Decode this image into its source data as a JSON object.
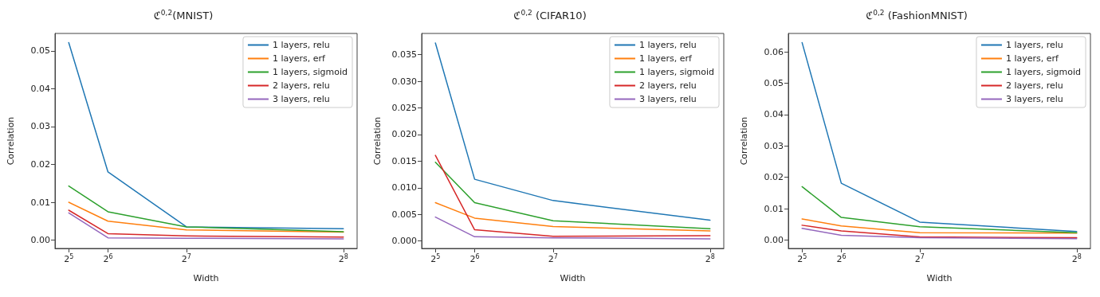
{
  "chart_data": [
    {
      "type": "line",
      "title": "ℭ$^{0,2}$(MNIST)",
      "xlabel": "Width",
      "ylabel": "Correlation",
      "x": [
        32,
        64,
        128,
        256
      ],
      "xlim": [
        20.8,
        267.2
      ],
      "xticks": [
        {
          "value": 32,
          "label": "2$^{5}$"
        },
        {
          "value": 64,
          "label": "2$^{6}$"
        },
        {
          "value": 128,
          "label": "2$^{7}$"
        },
        {
          "value": 256,
          "label": "2$^{8}$"
        }
      ],
      "ylim": [
        -0.0022,
        0.0546
      ],
      "yticks": [
        {
          "value": 0,
          "label": "0.00"
        },
        {
          "value": 0.01,
          "label": "0.01"
        },
        {
          "value": 0.02,
          "label": "0.02"
        },
        {
          "value": 0.03,
          "label": "0.03"
        },
        {
          "value": 0.04,
          "label": "0.04"
        },
        {
          "value": 0.05,
          "label": "0.05"
        }
      ],
      "legend": "top right",
      "grid": false,
      "marker": "none",
      "line_style": "solid",
      "series": [
        {
          "name": "1 layers, relu",
          "color": "#1f77b4",
          "values": [
            0.0522,
            0.018,
            0.0035,
            0.003
          ]
        },
        {
          "name": "1 layers, erf",
          "color": "#ff7f0e",
          "values": [
            0.01,
            0.005,
            0.0027,
            0.0021
          ]
        },
        {
          "name": "1 layers, sigmoid",
          "color": "#2ca02c",
          "values": [
            0.0143,
            0.0075,
            0.0035,
            0.0022
          ]
        },
        {
          "name": "2 layers, relu",
          "color": "#d62728",
          "values": [
            0.0079,
            0.0017,
            0.0011,
            0.0008
          ]
        },
        {
          "name": "3 layers, relu",
          "color": "#9467bd",
          "values": [
            0.0072,
            0.0006,
            0.0005,
            0.0003
          ]
        }
      ]
    },
    {
      "type": "line",
      "title": "ℭ$^{0,2}$ (CIFAR10)",
      "xlabel": "Width",
      "ylabel": "Correlation",
      "x": [
        32,
        64,
        128,
        256
      ],
      "xlim": [
        20.8,
        267.2
      ],
      "xticks": [
        {
          "value": 32,
          "label": "2$^{5}$"
        },
        {
          "value": 64,
          "label": "2$^{6}$"
        },
        {
          "value": 128,
          "label": "2$^{7}$"
        },
        {
          "value": 256,
          "label": "2$^{8}$"
        }
      ],
      "ylim": [
        -0.0014,
        0.039
      ],
      "yticks": [
        {
          "value": 0,
          "label": "0.000"
        },
        {
          "value": 0.005,
          "label": "0.005"
        },
        {
          "value": 0.01,
          "label": "0.010"
        },
        {
          "value": 0.015,
          "label": "0.015"
        },
        {
          "value": 0.02,
          "label": "0.020"
        },
        {
          "value": 0.025,
          "label": "0.025"
        },
        {
          "value": 0.03,
          "label": "0.030"
        },
        {
          "value": 0.035,
          "label": "0.035"
        }
      ],
      "legend": "top right",
      "grid": false,
      "marker": "none",
      "line_style": "solid",
      "series": [
        {
          "name": "1 layers, relu",
          "color": "#1f77b4",
          "values": [
            0.0372,
            0.0116,
            0.0076,
            0.0039
          ]
        },
        {
          "name": "1 layers, erf",
          "color": "#ff7f0e",
          "values": [
            0.0072,
            0.0043,
            0.0027,
            0.0019
          ]
        },
        {
          "name": "1 layers, sigmoid",
          "color": "#2ca02c",
          "values": [
            0.0148,
            0.0072,
            0.0038,
            0.0023
          ]
        },
        {
          "name": "2 layers, relu",
          "color": "#d62728",
          "values": [
            0.0161,
            0.0021,
            0.0009,
            0.001
          ]
        },
        {
          "name": "3 layers, relu",
          "color": "#9467bd",
          "values": [
            0.0045,
            0.0008,
            0.0006,
            0.0004
          ]
        }
      ]
    },
    {
      "type": "line",
      "title": "ℭ$^{0,2}$ (FashionMNIST)",
      "xlabel": "Width",
      "ylabel": "Correlation",
      "x": [
        32,
        64,
        128,
        256
      ],
      "xlim": [
        20.8,
        267.2
      ],
      "xticks": [
        {
          "value": 32,
          "label": "2$^{5}$"
        },
        {
          "value": 64,
          "label": "2$^{6}$"
        },
        {
          "value": 128,
          "label": "2$^{7}$"
        },
        {
          "value": 256,
          "label": "2$^{8}$"
        }
      ],
      "ylim": [
        -0.0027,
        0.0659
      ],
      "yticks": [
        {
          "value": 0,
          "label": "0.00"
        },
        {
          "value": 0.01,
          "label": "0.01"
        },
        {
          "value": 0.02,
          "label": "0.02"
        },
        {
          "value": 0.03,
          "label": "0.03"
        },
        {
          "value": 0.04,
          "label": "0.04"
        },
        {
          "value": 0.05,
          "label": "0.05"
        },
        {
          "value": 0.06,
          "label": "0.06"
        }
      ],
      "legend": "top right",
      "grid": false,
      "marker": "none",
      "line_style": "solid",
      "series": [
        {
          "name": "1 layers, relu",
          "color": "#1f77b4",
          "values": [
            0.063,
            0.0181,
            0.0057,
            0.0027
          ]
        },
        {
          "name": "1 layers, erf",
          "color": "#ff7f0e",
          "values": [
            0.0067,
            0.0045,
            0.0023,
            0.0022
          ]
        },
        {
          "name": "1 layers, sigmoid",
          "color": "#2ca02c",
          "values": [
            0.017,
            0.0072,
            0.0042,
            0.0023
          ]
        },
        {
          "name": "2 layers, relu",
          "color": "#d62728",
          "values": [
            0.0047,
            0.0029,
            0.001,
            0.0007
          ]
        },
        {
          "name": "3 layers, relu",
          "color": "#9467bd",
          "values": [
            0.0037,
            0.0015,
            0.0007,
            0.0004
          ]
        }
      ]
    }
  ]
}
